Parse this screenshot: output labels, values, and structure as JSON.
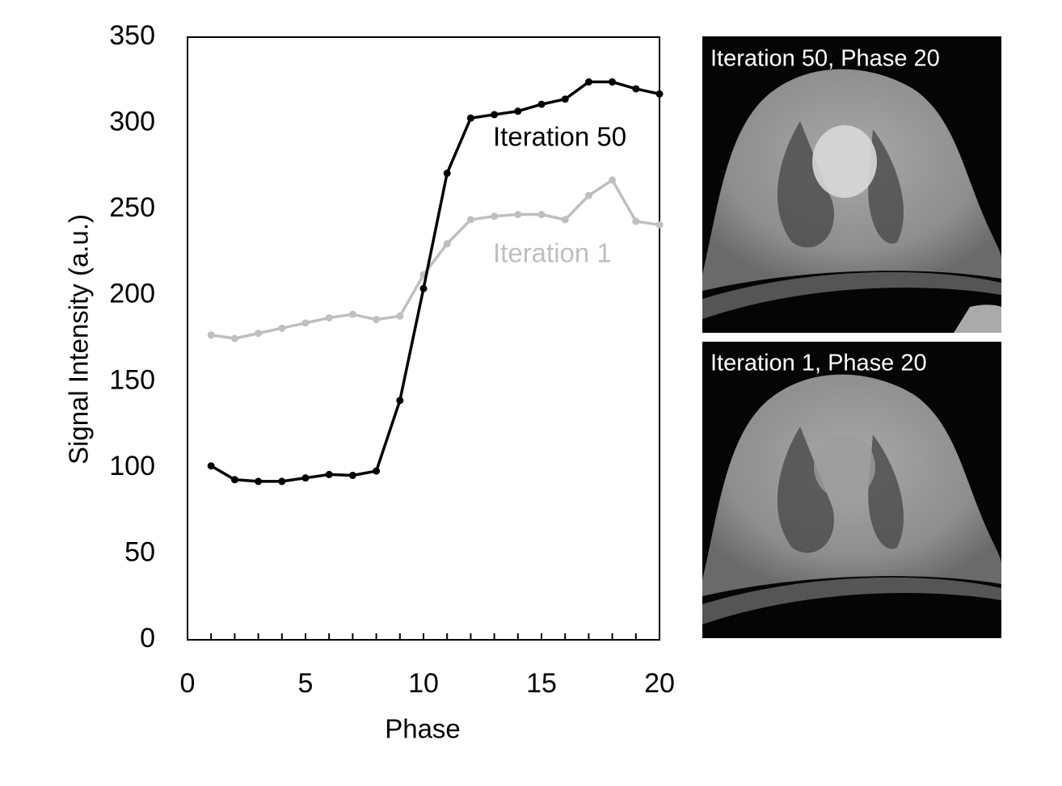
{
  "chart_data": {
    "type": "line",
    "x": [
      1,
      2,
      3,
      4,
      5,
      6,
      7,
      8,
      9,
      10,
      11,
      12,
      13,
      14,
      15,
      16,
      17,
      18,
      19,
      20
    ],
    "series": [
      {
        "name": "Iteration 50",
        "color": "#000000",
        "values": [
          101,
          93,
          92,
          92,
          94,
          96,
          95.5,
          98,
          139,
          204,
          271,
          303,
          305,
          307,
          311,
          314,
          324,
          324,
          320,
          317
        ]
      },
      {
        "name": "Iteration 1",
        "color": "#bfbfbf",
        "values": [
          177,
          175,
          178,
          181,
          184,
          187,
          189,
          186,
          188,
          212,
          230,
          244,
          246,
          247,
          247,
          244,
          258,
          267,
          243,
          241
        ]
      }
    ],
    "x_label": "Phase",
    "y_label": "Signal Intensity (a.u.)",
    "xlim": [
      0,
      20
    ],
    "xticks": [
      0,
      5,
      10,
      15,
      20
    ],
    "ylim": [
      0,
      350
    ],
    "yticks": [
      0,
      50,
      100,
      150,
      200,
      250,
      300,
      350
    ]
  },
  "panels": [
    {
      "label": "Iteration 50, Phase 20"
    },
    {
      "label": "Iteration 1, Phase 20"
    }
  ]
}
